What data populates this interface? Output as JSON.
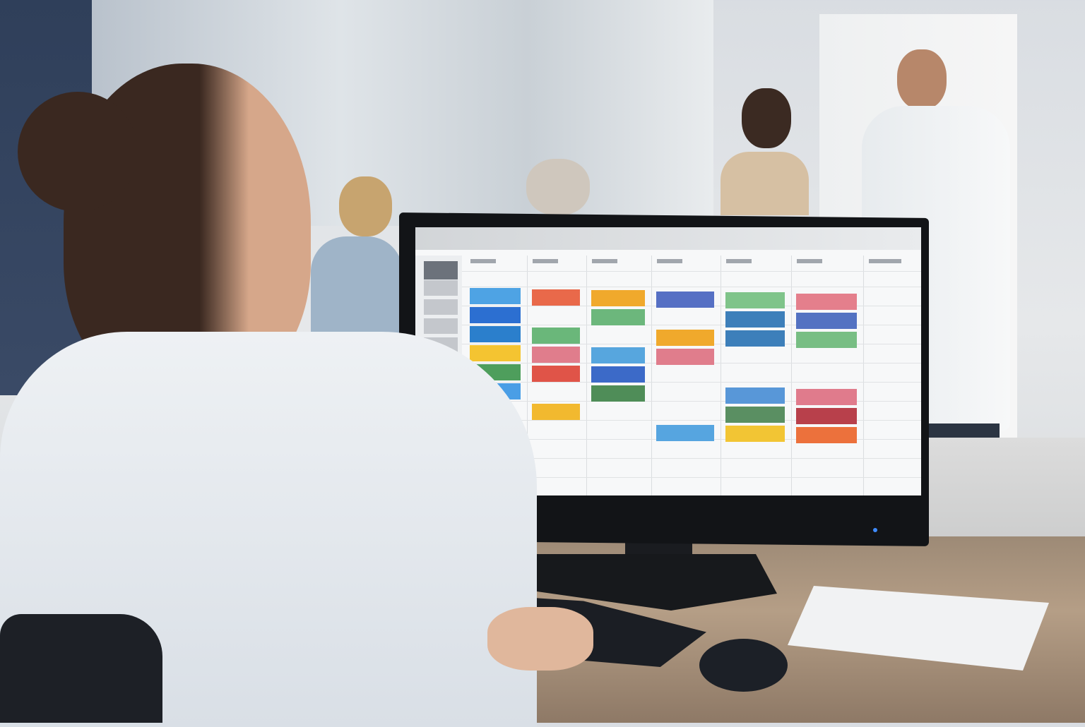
{
  "scene": {
    "description_colors": {
      "wall": "#2f3f5a",
      "desk": "#a8927b",
      "monitor": "#121417"
    }
  },
  "screen": {
    "app": "calendar-scheduler",
    "columns": 7,
    "sidebar_items": 8,
    "events": [
      {
        "col": 0,
        "row": 0,
        "color": "#4ea3e4"
      },
      {
        "col": 0,
        "row": 1,
        "color": "#2c6fd1"
      },
      {
        "col": 0,
        "row": 2,
        "color": "#2b7fcc"
      },
      {
        "col": 0,
        "row": 3,
        "color": "#f4c431"
      },
      {
        "col": 0,
        "row": 4,
        "color": "#4e9e5c"
      },
      {
        "col": 0,
        "row": 5,
        "color": "#4a9ee6"
      },
      {
        "col": 1,
        "row": 0,
        "color": "#e9694a"
      },
      {
        "col": 1,
        "row": 2,
        "color": "#6ab77a"
      },
      {
        "col": 1,
        "row": 3,
        "color": "#e07d8c"
      },
      {
        "col": 1,
        "row": 4,
        "color": "#e05448"
      },
      {
        "col": 1,
        "row": 6,
        "color": "#f2b92f"
      },
      {
        "col": 2,
        "row": 0,
        "color": "#f0a92c"
      },
      {
        "col": 2,
        "row": 1,
        "color": "#6cb77c"
      },
      {
        "col": 2,
        "row": 3,
        "color": "#57a6de"
      },
      {
        "col": 2,
        "row": 4,
        "color": "#3c6ac8"
      },
      {
        "col": 2,
        "row": 5,
        "color": "#4f8d58"
      },
      {
        "col": 3,
        "row": 0,
        "color": "#5670c4"
      },
      {
        "col": 3,
        "row": 2,
        "color": "#f0a92c"
      },
      {
        "col": 3,
        "row": 3,
        "color": "#e07d8c"
      },
      {
        "col": 3,
        "row": 7,
        "color": "#56a5e0"
      },
      {
        "col": 4,
        "row": 0,
        "color": "#7fc48a"
      },
      {
        "col": 4,
        "row": 1,
        "color": "#3d7fba"
      },
      {
        "col": 4,
        "row": 2,
        "color": "#3d7fba"
      },
      {
        "col": 4,
        "row": 5,
        "color": "#5897d8"
      },
      {
        "col": 4,
        "row": 6,
        "color": "#5a8f62"
      },
      {
        "col": 4,
        "row": 7,
        "color": "#f2c534"
      },
      {
        "col": 5,
        "row": 0,
        "color": "#e47f8c"
      },
      {
        "col": 5,
        "row": 1,
        "color": "#5372c2"
      },
      {
        "col": 5,
        "row": 2,
        "color": "#78be84"
      },
      {
        "col": 5,
        "row": 5,
        "color": "#e07b8c"
      },
      {
        "col": 5,
        "row": 6,
        "color": "#b8404b"
      },
      {
        "col": 5,
        "row": 7,
        "color": "#ec713c"
      }
    ]
  }
}
